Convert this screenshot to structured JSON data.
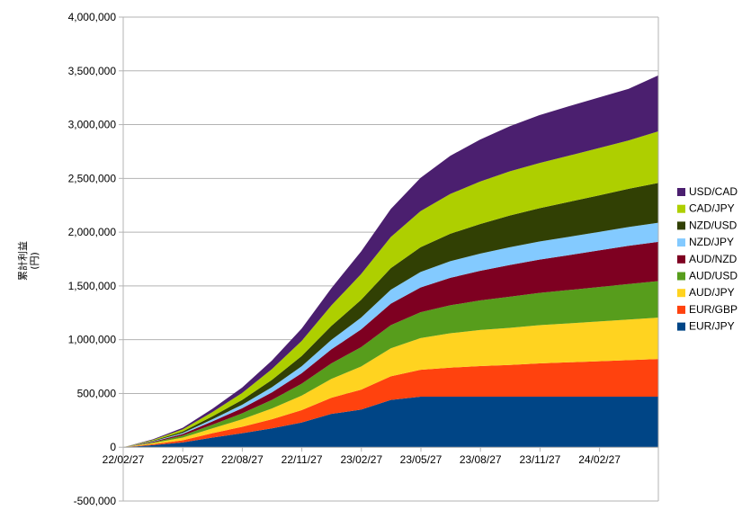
{
  "chart_data": {
    "type": "area",
    "stacked": true,
    "title": "",
    "xlabel": "",
    "ylabel_lines": [
      "累計利益",
      "(円)"
    ],
    "ylim": [
      -500000,
      4000000
    ],
    "yticks": [
      -500000,
      0,
      500000,
      1000000,
      1500000,
      2000000,
      2500000,
      3000000,
      3500000,
      4000000
    ],
    "ytick_labels": [
      "-500,000",
      "0",
      "500,000",
      "1,000,000",
      "1,500,000",
      "2,000,000",
      "2,500,000",
      "3,000,000",
      "3,500,000",
      "4,000,000"
    ],
    "x_tick_labels": [
      "22/02/27",
      "22/05/27",
      "22/08/27",
      "22/11/27",
      "23/02/27",
      "23/05/27",
      "23/08/27",
      "23/11/27",
      "24/02/27"
    ],
    "x": [
      "22/02/27",
      "22/04/12",
      "22/05/27",
      "22/07/12",
      "22/08/27",
      "22/10/12",
      "22/11/27",
      "23/01/12",
      "23/02/27",
      "23/04/12",
      "23/05/27",
      "23/07/12",
      "23/08/27",
      "23/10/12",
      "23/11/27",
      "24/01/12",
      "24/02/27",
      "24/04/12",
      "24/05/27"
    ],
    "grid": true,
    "legend_position": "right",
    "series": [
      {
        "name": "EUR/JPY",
        "color": "#004586",
        "values": [
          0,
          20000,
          45000,
          90000,
          130000,
          175000,
          230000,
          310000,
          350000,
          440000,
          470000,
          470000,
          470000,
          470000,
          470000,
          470000,
          470000,
          470000,
          470000
        ]
      },
      {
        "name": "EUR/GBP",
        "color": "#ff420e",
        "values": [
          0,
          8000,
          20000,
          40000,
          60000,
          85000,
          115000,
          150000,
          185000,
          220000,
          250000,
          270000,
          285000,
          295000,
          310000,
          320000,
          330000,
          340000,
          350000
        ]
      },
      {
        "name": "AUD/JPY",
        "color": "#ffd320",
        "values": [
          0,
          10000,
          25000,
          45000,
          70000,
          100000,
          135000,
          175000,
          215000,
          260000,
          295000,
          320000,
          335000,
          345000,
          355000,
          362000,
          370000,
          378000,
          385000
        ]
      },
      {
        "name": "AUD/USD",
        "color": "#579d1c",
        "values": [
          0,
          7000,
          18000,
          35000,
          55000,
          80000,
          110000,
          145000,
          180000,
          215000,
          240000,
          260000,
          275000,
          290000,
          300000,
          310000,
          320000,
          330000,
          340000
        ]
      },
      {
        "name": "AUD/NZD",
        "color": "#7e0021",
        "values": [
          0,
          6000,
          15000,
          30000,
          48000,
          70000,
          98000,
          130000,
          165000,
          200000,
          230000,
          255000,
          275000,
          295000,
          310000,
          325000,
          340000,
          355000,
          365000
        ]
      },
      {
        "name": "NZD/JPY",
        "color": "#83caff",
        "values": [
          0,
          4000,
          10000,
          20000,
          32000,
          48000,
          65000,
          88000,
          110000,
          130000,
          145000,
          155000,
          160000,
          165000,
          168000,
          170000,
          172000,
          175000,
          178000
        ]
      },
      {
        "name": "NZD/USD",
        "color": "#314004",
        "values": [
          0,
          5000,
          13000,
          27000,
          45000,
          68000,
          95000,
          130000,
          165000,
          200000,
          230000,
          255000,
          275000,
          295000,
          310000,
          325000,
          340000,
          355000,
          370000
        ]
      },
      {
        "name": "CAD/JPY",
        "color": "#aecf00",
        "values": [
          0,
          8000,
          20000,
          40000,
          65000,
          100000,
          140000,
          190000,
          240000,
          290000,
          335000,
          370000,
          395000,
          410000,
          420000,
          430000,
          440000,
          450000,
          480000
        ]
      },
      {
        "name": "USD/CAD",
        "color": "#4b1f6f",
        "values": [
          0,
          6000,
          15000,
          30000,
          50000,
          80000,
          115000,
          160000,
          210000,
          260000,
          310000,
          355000,
          390000,
          420000,
          445000,
          460000,
          470000,
          480000,
          520000
        ]
      }
    ]
  }
}
